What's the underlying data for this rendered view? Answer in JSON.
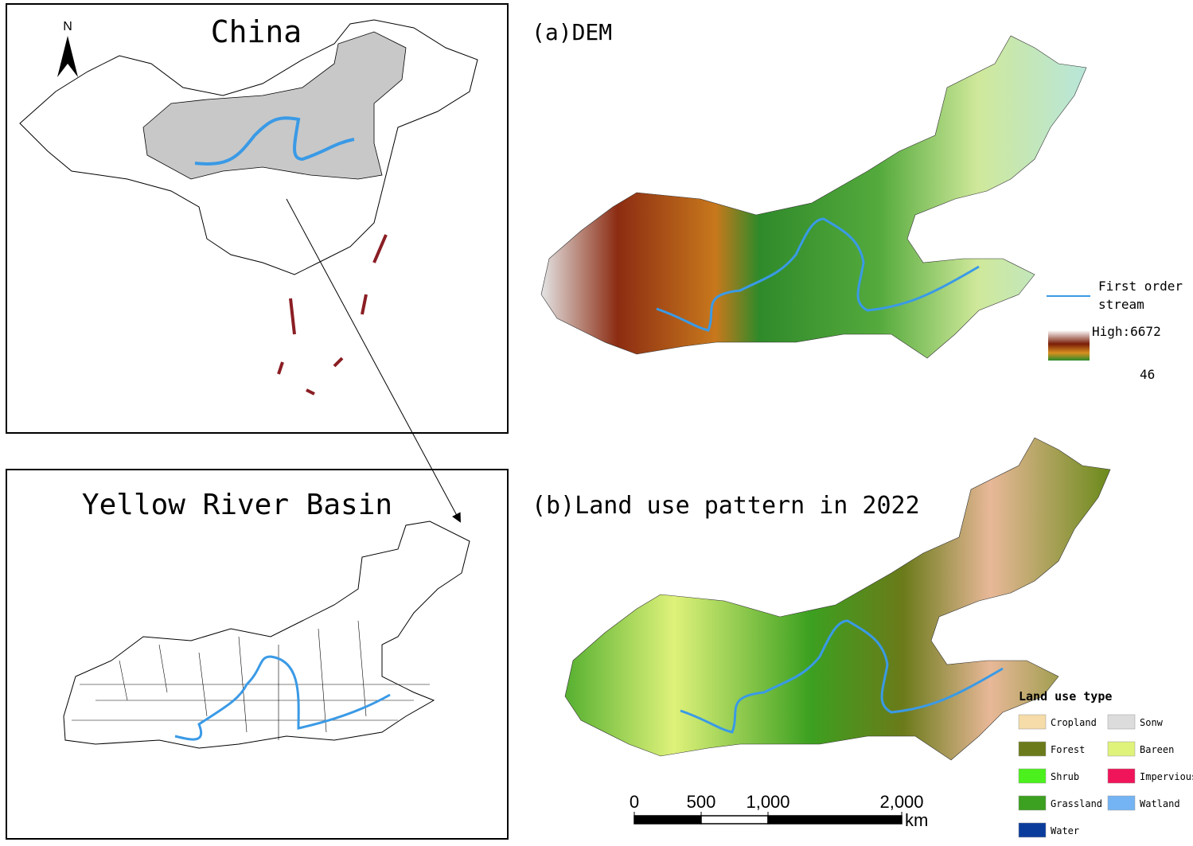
{
  "north_arrow": "N",
  "china_panel": {
    "title": "China"
  },
  "basin_panel": {
    "title": "Yellow River Basin"
  },
  "dem_panel": {
    "title": "(a)DEM",
    "legend": {
      "stream": [
        "First order",
        "stream"
      ],
      "high": "High:6672",
      "low": "46"
    }
  },
  "landuse_panel": {
    "title": "(b)Land use pattern in 2022",
    "legend": {
      "title": "Land use type",
      "items": [
        {
          "label": "Cropland",
          "color": "#f5dca8"
        },
        {
          "label": "Sonw",
          "color": "#dcdcdc"
        },
        {
          "label": "Forest",
          "color": "#6b7a1a"
        },
        {
          "label": "Bareen",
          "color": "#dff27a"
        },
        {
          "label": "Shrub",
          "color": "#4cf01c"
        },
        {
          "label": "Impervious",
          "color": "#f0145a"
        },
        {
          "label": "Grassland",
          "color": "#3ca020"
        },
        {
          "label": "Watland",
          "color": "#74b4f4"
        },
        {
          "label": "Water",
          "color": "#0a3c9c"
        }
      ]
    }
  },
  "scale_bar": {
    "ticks": [
      0,
      500,
      {
        "value": 1000,
        "label": "1,000"
      },
      {
        "value": 2000,
        "label": "2,000"
      }
    ],
    "unit": "km"
  }
}
